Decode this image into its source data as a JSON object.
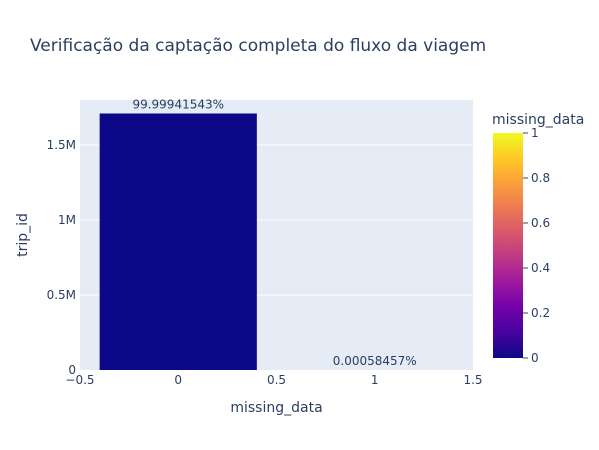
{
  "chart_data": {
    "type": "bar",
    "title": "Verificação da captação completa do fluxo da viagem",
    "xlabel": "missing_data",
    "ylabel": "trip_id",
    "xlim": [
      -0.5,
      1.5
    ],
    "ylim": [
      0,
      1800000
    ],
    "x_ticks": [
      -0.5,
      0,
      0.5,
      1,
      1.5
    ],
    "x_tick_labels": [
      "−0.5",
      "0",
      "0.5",
      "1",
      "1.5"
    ],
    "y_ticks": [
      0,
      500000,
      1000000,
      1500000
    ],
    "y_tick_labels": [
      "0",
      "0.5M",
      "1M",
      "1.5M"
    ],
    "bar_width": 0.8,
    "grid": true,
    "bars": [
      {
        "x": 0,
        "value": 1710000,
        "label": "99.99941543%",
        "color_value": 0
      },
      {
        "x": 1,
        "value": 10,
        "label": "0.00058457%",
        "color_value": 1
      }
    ],
    "colorbar": {
      "title": "missing_data",
      "range": [
        0,
        1
      ],
      "ticks": [
        0,
        0.2,
        0.4,
        0.6,
        0.8,
        1
      ],
      "tick_labels": [
        "0",
        "0.2",
        "0.4",
        "0.6",
        "0.8",
        "1"
      ],
      "colors": [
        "#0d0887",
        "#46039f",
        "#7201a8",
        "#9c179e",
        "#bd3786",
        "#d8576b",
        "#ed7953",
        "#fb9f3a",
        "#fdca26",
        "#f0f921"
      ]
    },
    "plot_bg_color": "#e5ecf6"
  }
}
